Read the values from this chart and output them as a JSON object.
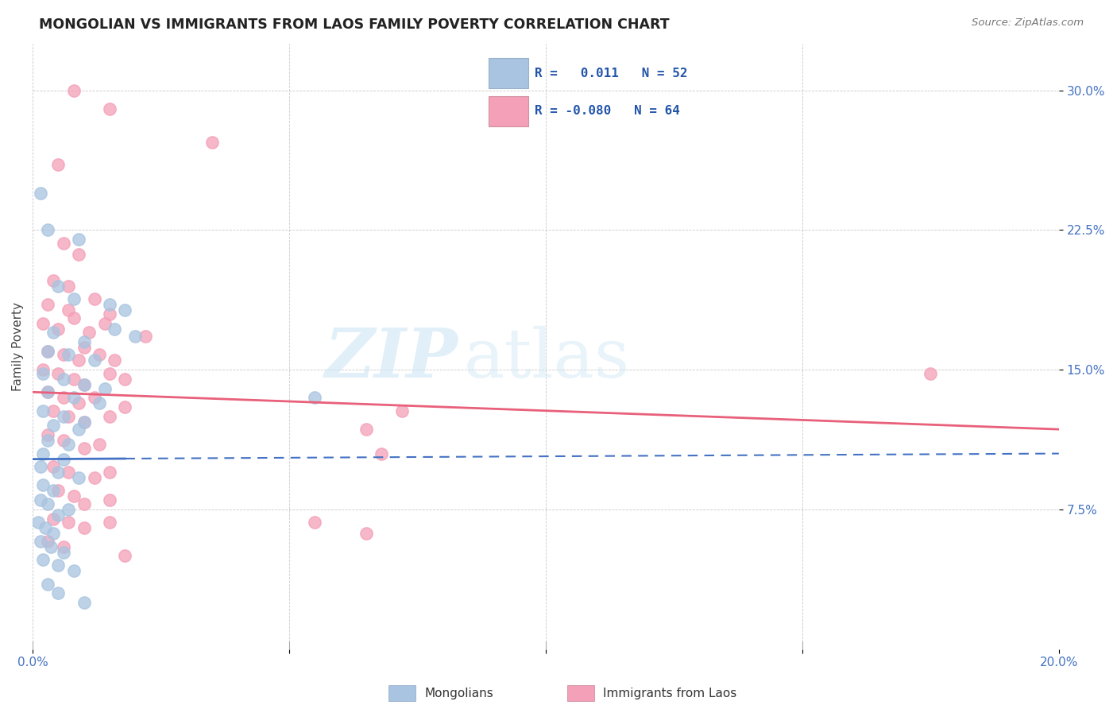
{
  "title": "MONGOLIAN VS IMMIGRANTS FROM LAOS FAMILY POVERTY CORRELATION CHART",
  "source": "Source: ZipAtlas.com",
  "ylabel": "Family Poverty",
  "ytick_labels": [
    "7.5%",
    "15.0%",
    "22.5%",
    "30.0%"
  ],
  "ytick_values": [
    7.5,
    15.0,
    22.5,
    30.0
  ],
  "xmin": 0.0,
  "xmax": 20.0,
  "ymin": 0.0,
  "ymax": 32.5,
  "mongolian_R": "0.011",
  "mongolian_N": "52",
  "laos_R": "-0.080",
  "laos_N": "64",
  "mongolian_color": "#a8c4e0",
  "laos_color": "#f4a0b8",
  "mongolian_line_color": "#4472c4",
  "laos_line_color": "#e8607a",
  "mongolian_points": [
    [
      0.15,
      24.5
    ],
    [
      0.3,
      22.5
    ],
    [
      0.9,
      22.0
    ],
    [
      0.5,
      19.5
    ],
    [
      0.8,
      18.8
    ],
    [
      1.5,
      18.5
    ],
    [
      1.8,
      18.2
    ],
    [
      0.4,
      17.0
    ],
    [
      1.0,
      16.5
    ],
    [
      1.6,
      17.2
    ],
    [
      2.0,
      16.8
    ],
    [
      0.3,
      16.0
    ],
    [
      0.7,
      15.8
    ],
    [
      1.2,
      15.5
    ],
    [
      0.2,
      14.8
    ],
    [
      0.6,
      14.5
    ],
    [
      1.0,
      14.2
    ],
    [
      1.4,
      14.0
    ],
    [
      0.3,
      13.8
    ],
    [
      0.8,
      13.5
    ],
    [
      1.3,
      13.2
    ],
    [
      0.2,
      12.8
    ],
    [
      0.6,
      12.5
    ],
    [
      1.0,
      12.2
    ],
    [
      0.4,
      12.0
    ],
    [
      0.9,
      11.8
    ],
    [
      0.3,
      11.2
    ],
    [
      0.7,
      11.0
    ],
    [
      0.2,
      10.5
    ],
    [
      0.6,
      10.2
    ],
    [
      0.15,
      9.8
    ],
    [
      0.5,
      9.5
    ],
    [
      0.9,
      9.2
    ],
    [
      0.2,
      8.8
    ],
    [
      0.4,
      8.5
    ],
    [
      0.15,
      8.0
    ],
    [
      0.3,
      7.8
    ],
    [
      0.7,
      7.5
    ],
    [
      0.5,
      7.2
    ],
    [
      0.1,
      6.8
    ],
    [
      0.25,
      6.5
    ],
    [
      0.4,
      6.2
    ],
    [
      0.15,
      5.8
    ],
    [
      0.35,
      5.5
    ],
    [
      0.6,
      5.2
    ],
    [
      0.2,
      4.8
    ],
    [
      0.5,
      4.5
    ],
    [
      0.8,
      4.2
    ],
    [
      0.3,
      3.5
    ],
    [
      0.5,
      3.0
    ],
    [
      1.0,
      2.5
    ],
    [
      5.5,
      13.5
    ]
  ],
  "laos_points": [
    [
      0.8,
      30.0
    ],
    [
      1.5,
      29.0
    ],
    [
      3.5,
      27.2
    ],
    [
      0.5,
      26.0
    ],
    [
      0.6,
      21.8
    ],
    [
      0.9,
      21.2
    ],
    [
      0.4,
      19.8
    ],
    [
      0.7,
      19.5
    ],
    [
      0.3,
      18.5
    ],
    [
      0.7,
      18.2
    ],
    [
      1.2,
      18.8
    ],
    [
      1.5,
      18.0
    ],
    [
      0.2,
      17.5
    ],
    [
      0.5,
      17.2
    ],
    [
      0.8,
      17.8
    ],
    [
      1.1,
      17.0
    ],
    [
      1.4,
      17.5
    ],
    [
      2.2,
      16.8
    ],
    [
      0.3,
      16.0
    ],
    [
      0.6,
      15.8
    ],
    [
      0.9,
      15.5
    ],
    [
      1.0,
      16.2
    ],
    [
      1.3,
      15.8
    ],
    [
      1.6,
      15.5
    ],
    [
      0.2,
      15.0
    ],
    [
      0.5,
      14.8
    ],
    [
      0.8,
      14.5
    ],
    [
      1.0,
      14.2
    ],
    [
      1.5,
      14.8
    ],
    [
      1.8,
      14.5
    ],
    [
      0.3,
      13.8
    ],
    [
      0.6,
      13.5
    ],
    [
      0.9,
      13.2
    ],
    [
      1.2,
      13.5
    ],
    [
      1.8,
      13.0
    ],
    [
      0.4,
      12.8
    ],
    [
      0.7,
      12.5
    ],
    [
      1.0,
      12.2
    ],
    [
      1.5,
      12.5
    ],
    [
      6.5,
      11.8
    ],
    [
      7.2,
      12.8
    ],
    [
      0.3,
      11.5
    ],
    [
      0.6,
      11.2
    ],
    [
      1.0,
      10.8
    ],
    [
      1.3,
      11.0
    ],
    [
      6.8,
      10.5
    ],
    [
      0.4,
      9.8
    ],
    [
      0.7,
      9.5
    ],
    [
      1.2,
      9.2
    ],
    [
      1.5,
      9.5
    ],
    [
      5.5,
      6.8
    ],
    [
      0.5,
      8.5
    ],
    [
      0.8,
      8.2
    ],
    [
      1.0,
      7.8
    ],
    [
      1.5,
      8.0
    ],
    [
      0.4,
      7.0
    ],
    [
      0.7,
      6.8
    ],
    [
      1.0,
      6.5
    ],
    [
      1.5,
      6.8
    ],
    [
      0.3,
      5.8
    ],
    [
      0.6,
      5.5
    ],
    [
      1.8,
      5.0
    ],
    [
      6.5,
      6.2
    ],
    [
      17.5,
      14.8
    ]
  ],
  "mong_trend_x0": 0.0,
  "mong_trend_y0": 10.2,
  "mong_trend_x1": 20.0,
  "mong_trend_y1": 10.5,
  "mong_solid_end": 1.8,
  "laos_trend_x0": 0.0,
  "laos_trend_y0": 13.8,
  "laos_trend_x1": 20.0,
  "laos_trend_y1": 11.8
}
